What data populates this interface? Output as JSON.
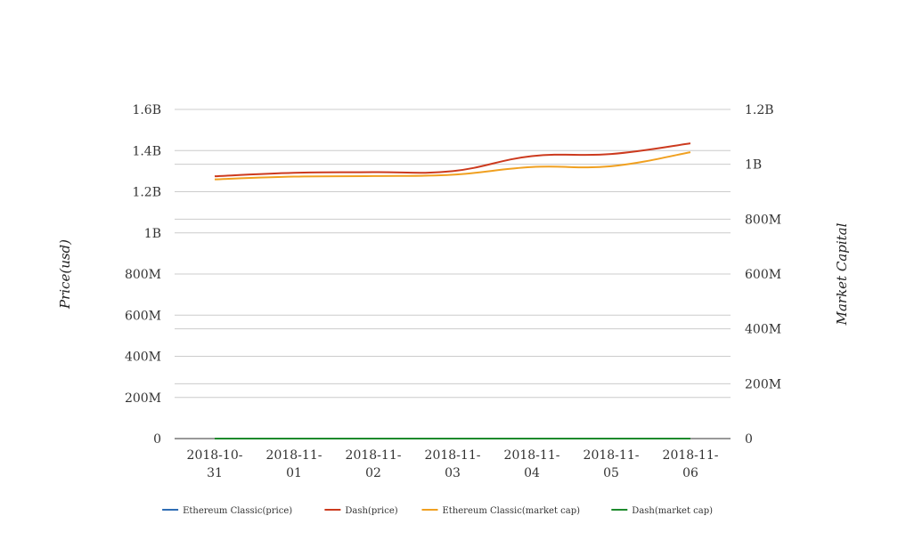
{
  "chart_data": {
    "type": "line",
    "categories": [
      "2018-10-31",
      "2018-11-01",
      "2018-11-02",
      "2018-11-03",
      "2018-11-04",
      "2018-11-05",
      "2018-11-06"
    ],
    "category_lines": [
      [
        "2018-10-",
        "31"
      ],
      [
        "2018-11-",
        "01"
      ],
      [
        "2018-11-",
        "02"
      ],
      [
        "2018-11-",
        "03"
      ],
      [
        "2018-11-",
        "04"
      ],
      [
        "2018-11-",
        "05"
      ],
      [
        "2018-11-",
        "06"
      ]
    ],
    "y_left": {
      "label": "Price(usd)",
      "ylim": [
        0,
        1600000000
      ],
      "ticks": [
        0,
        200000000,
        400000000,
        600000000,
        800000000,
        1000000000,
        1200000000,
        1400000000,
        1600000000
      ],
      "tick_labels": [
        "0",
        "200M",
        "400M",
        "600M",
        "800M",
        "1B",
        "1.2B",
        "1.4B",
        "1.6B"
      ]
    },
    "y_right": {
      "label": "Market Capital",
      "ylim": [
        0,
        1200000000
      ],
      "ticks": [
        0,
        200000000,
        400000000,
        600000000,
        800000000,
        1000000000,
        1200000000
      ],
      "tick_labels": [
        "0",
        "200M",
        "400M",
        "600M",
        "800M",
        "1B",
        "1.2B"
      ]
    },
    "series": [
      {
        "name": "Ethereum Classic(price)",
        "axis": "left",
        "color": "#2f6db5",
        "values": [
          9.5,
          9.6,
          9.7,
          9.5,
          9.8,
          9.9,
          10.1
        ]
      },
      {
        "name": "Dash(price)",
        "axis": "left",
        "color": "#cc3a1e",
        "values": [
          1275000000,
          1292000000,
          1295000000,
          1300000000,
          1373000000,
          1383000000,
          1435000000
        ]
      },
      {
        "name": "Ethereum Classic(market cap)",
        "axis": "right",
        "color": "#f0a020",
        "values": [
          945000000,
          955000000,
          957000000,
          962000000,
          990000000,
          993000000,
          1044000000
        ]
      },
      {
        "name": "Dash(market cap)",
        "axis": "right",
        "color": "#1d8a2c",
        "values": [
          160,
          161,
          163,
          165,
          168,
          170,
          175
        ]
      }
    ],
    "grid": true,
    "legend_position": "bottom"
  }
}
